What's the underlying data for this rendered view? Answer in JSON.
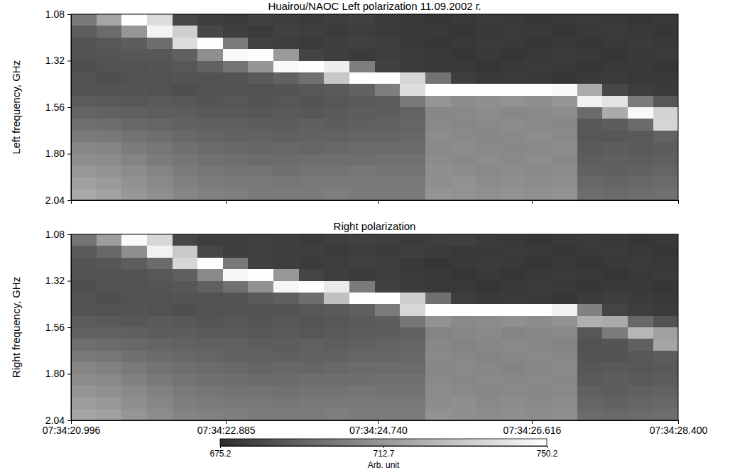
{
  "chart_data": [
    {
      "type": "heatmap",
      "title": "Huairou/NAOC Left polarization 11.09.2002 г.",
      "y_label": "Left frequency, GHz",
      "xlim": [
        20.996,
        28.4
      ],
      "xticks": [
        20.996,
        22.885,
        24.74,
        26.616,
        28.4
      ],
      "ylim": [
        1.08,
        2.04
      ],
      "yticks": [
        1.08,
        1.32,
        1.56,
        {
          "value": 1.8,
          "label": "1.80"
        },
        2.04
      ],
      "tick_labels": "y",
      "x_edges": [
        20.996,
        21.305,
        21.613,
        21.922,
        22.23,
        22.539,
        22.848,
        23.156,
        23.465,
        23.773,
        24.082,
        24.39,
        24.699,
        25.008,
        25.316,
        25.625,
        25.933,
        26.242,
        26.55,
        26.859,
        27.168,
        27.476,
        27.785,
        28.093,
        28.4
      ],
      "y_edges": [
        1.08,
        1.14,
        1.2,
        1.26,
        1.32,
        1.38,
        1.44,
        1.5,
        1.56,
        1.62,
        1.68,
        1.74,
        1.8,
        1.86,
        1.92,
        1.98,
        2.04
      ],
      "cells": [
        [
          702,
          718,
          750,
          738,
          684,
          681,
          680,
          682,
          681,
          680,
          681,
          682,
          680,
          679,
          678,
          679,
          680,
          679,
          678,
          679,
          680,
          679,
          678,
          679
        ],
        [
          692,
          697,
          712,
          746,
          733,
          684,
          681,
          680,
          682,
          681,
          680,
          681,
          680,
          679,
          679,
          678,
          679,
          680,
          679,
          678,
          679,
          680,
          679,
          678
        ],
        [
          689,
          690,
          692,
          698,
          738,
          750,
          703,
          682,
          681,
          680,
          681,
          682,
          681,
          679,
          678,
          679,
          680,
          679,
          678,
          679,
          678,
          679,
          680,
          679
        ],
        [
          688,
          689,
          690,
          690,
          693,
          710,
          748,
          750,
          714,
          683,
          681,
          680,
          681,
          680,
          679,
          678,
          679,
          678,
          679,
          680,
          679,
          678,
          679,
          680
        ],
        [
          687,
          688,
          688,
          689,
          690,
          694,
          700,
          712,
          748,
          750,
          744,
          704,
          682,
          680,
          679,
          679,
          678,
          679,
          680,
          679,
          678,
          679,
          679,
          678
        ],
        [
          688,
          687,
          688,
          688,
          689,
          688,
          689,
          691,
          694,
          699,
          730,
          750,
          750,
          735,
          700,
          681,
          679,
          680,
          679,
          678,
          679,
          680,
          679,
          679
        ],
        [
          689,
          688,
          689,
          688,
          687,
          688,
          689,
          688,
          689,
          690,
          691,
          694,
          704,
          738,
          750,
          750,
          750,
          750,
          750,
          748,
          720,
          684,
          681,
          680
        ],
        [
          692,
          691,
          690,
          691,
          690,
          689,
          690,
          689,
          690,
          689,
          690,
          691,
          692,
          702,
          712,
          709,
          710,
          711,
          710,
          712,
          745,
          740,
          703,
          690
        ],
        [
          695,
          694,
          693,
          692,
          692,
          691,
          691,
          690,
          691,
          690,
          691,
          692,
          692,
          694,
          707,
          708,
          709,
          707,
          708,
          709,
          697,
          720,
          748,
          734
        ],
        [
          699,
          698,
          696,
          695,
          694,
          693,
          693,
          692,
          692,
          693,
          692,
          693,
          694,
          695,
          708,
          707,
          708,
          709,
          708,
          707,
          690,
          692,
          697,
          735
        ],
        [
          703,
          702,
          700,
          698,
          696,
          695,
          694,
          694,
          693,
          694,
          694,
          695,
          695,
          696,
          709,
          708,
          707,
          708,
          709,
          708,
          690,
          690,
          691,
          694
        ],
        [
          707,
          706,
          703,
          701,
          699,
          697,
          696,
          695,
          696,
          695,
          696,
          697,
          697,
          697,
          708,
          709,
          708,
          707,
          708,
          709,
          691,
          692,
          691,
          692
        ],
        [
          710,
          709,
          706,
          703,
          701,
          699,
          698,
          697,
          697,
          698,
          698,
          698,
          699,
          699,
          709,
          708,
          709,
          708,
          709,
          708,
          692,
          693,
          692,
          693
        ],
        [
          713,
          711,
          709,
          706,
          703,
          701,
          700,
          700,
          699,
          700,
          700,
          701,
          700,
          700,
          710,
          709,
          708,
          709,
          708,
          709,
          694,
          693,
          694,
          695
        ],
        [
          716,
          714,
          711,
          708,
          705,
          703,
          702,
          702,
          701,
          702,
          702,
          702,
          702,
          702,
          710,
          711,
          709,
          710,
          709,
          710,
          696,
          695,
          696,
          697
        ],
        [
          719,
          717,
          713,
          710,
          707,
          705,
          704,
          703,
          703,
          703,
          704,
          703,
          703,
          703,
          712,
          711,
          710,
          711,
          710,
          711,
          698,
          697,
          698,
          699
        ]
      ]
    },
    {
      "type": "heatmap",
      "title": "Right polarization",
      "y_label": "Right frequency, GHz",
      "xlim": [
        20.996,
        28.4
      ],
      "xticks": [
        {
          "value": 20.996,
          "label": "07:34:20.996"
        },
        {
          "value": 22.885,
          "label": "07:34:22.885"
        },
        {
          "value": 24.74,
          "label": "07:34:24.740"
        },
        {
          "value": 26.616,
          "label": "07:34:26.616"
        },
        {
          "value": 28.4,
          "label": "07:34:28.400"
        }
      ],
      "ylim": [
        1.08,
        2.04
      ],
      "yticks": [
        1.08,
        1.32,
        1.56,
        {
          "value": 1.8,
          "label": "1.80"
        },
        2.04
      ],
      "x_edges": [
        20.996,
        21.305,
        21.613,
        21.922,
        22.23,
        22.539,
        22.848,
        23.156,
        23.465,
        23.773,
        24.082,
        24.39,
        24.699,
        25.008,
        25.316,
        25.625,
        25.933,
        26.242,
        26.55,
        26.859,
        27.168,
        27.476,
        27.785,
        28.093,
        28.4
      ],
      "y_edges": [
        1.08,
        1.14,
        1.2,
        1.26,
        1.32,
        1.38,
        1.44,
        1.5,
        1.56,
        1.62,
        1.68,
        1.74,
        1.8,
        1.86,
        1.92,
        1.98,
        2.04
      ],
      "cells": [
        [
          700,
          715,
          748,
          736,
          684,
          681,
          681,
          682,
          681,
          680,
          681,
          682,
          681,
          680,
          681,
          682,
          680,
          679,
          678,
          679,
          680,
          679,
          678,
          679
        ],
        [
          691,
          696,
          710,
          745,
          731,
          684,
          681,
          682,
          681,
          681,
          680,
          681,
          680,
          681,
          680,
          679,
          679,
          680,
          679,
          678,
          679,
          680,
          679,
          678
        ],
        [
          689,
          690,
          692,
          697,
          736,
          750,
          702,
          682,
          681,
          680,
          681,
          682,
          681,
          679,
          678,
          679,
          680,
          679,
          678,
          679,
          678,
          679,
          680,
          679
        ],
        [
          688,
          689,
          689,
          690,
          693,
          708,
          747,
          750,
          713,
          683,
          681,
          680,
          681,
          680,
          679,
          678,
          679,
          678,
          679,
          680,
          679,
          678,
          679,
          680
        ],
        [
          687,
          688,
          688,
          689,
          690,
          693,
          699,
          711,
          747,
          750,
          743,
          703,
          682,
          680,
          679,
          679,
          678,
          679,
          680,
          679,
          678,
          679,
          679,
          678
        ],
        [
          688,
          687,
          688,
          688,
          689,
          688,
          689,
          691,
          693,
          698,
          728,
          750,
          750,
          733,
          699,
          681,
          679,
          680,
          679,
          678,
          680,
          681,
          680,
          679
        ],
        [
          689,
          688,
          689,
          688,
          687,
          688,
          689,
          688,
          689,
          690,
          691,
          693,
          703,
          736,
          750,
          750,
          750,
          750,
          750,
          745,
          705,
          683,
          681,
          680
        ],
        [
          692,
          691,
          690,
          691,
          690,
          689,
          690,
          689,
          690,
          689,
          690,
          691,
          692,
          701,
          711,
          708,
          709,
          710,
          709,
          711,
          722,
          720,
          696,
          688
        ],
        [
          694,
          694,
          693,
          692,
          692,
          691,
          691,
          690,
          691,
          690,
          691,
          692,
          692,
          694,
          706,
          707,
          708,
          706,
          707,
          708,
          690,
          703,
          724,
          716
        ],
        [
          698,
          697,
          696,
          695,
          694,
          693,
          693,
          692,
          692,
          693,
          692,
          693,
          694,
          695,
          707,
          706,
          707,
          708,
          707,
          706,
          688,
          689,
          693,
          718
        ],
        [
          702,
          701,
          699,
          697,
          696,
          695,
          694,
          694,
          693,
          694,
          694,
          695,
          695,
          696,
          708,
          707,
          706,
          707,
          708,
          707,
          689,
          689,
          690,
          692
        ],
        [
          706,
          705,
          702,
          700,
          698,
          697,
          696,
          695,
          696,
          695,
          696,
          697,
          697,
          697,
          707,
          708,
          707,
          706,
          707,
          708,
          690,
          691,
          690,
          691
        ],
        [
          709,
          708,
          705,
          702,
          700,
          699,
          698,
          697,
          697,
          698,
          698,
          698,
          699,
          699,
          708,
          707,
          708,
          707,
          708,
          707,
          691,
          692,
          691,
          692
        ],
        [
          712,
          710,
          708,
          705,
          702,
          701,
          700,
          700,
          699,
          700,
          700,
          701,
          700,
          700,
          709,
          708,
          707,
          708,
          707,
          708,
          693,
          692,
          693,
          694
        ],
        [
          715,
          713,
          710,
          707,
          704,
          703,
          702,
          702,
          701,
          702,
          702,
          702,
          702,
          702,
          709,
          710,
          708,
          709,
          708,
          709,
          695,
          694,
          695,
          696
        ],
        [
          718,
          716,
          712,
          709,
          706,
          705,
          704,
          703,
          703,
          703,
          704,
          703,
          703,
          703,
          711,
          710,
          709,
          710,
          709,
          710,
          697,
          696,
          697,
          698
        ]
      ],
      "colorbar_range": [
        675.2,
        750.2
      ],
      "colorbar_ticks": [
        675.2,
        712.7,
        750.2
      ],
      "colorbar_label": "Arb. unit"
    }
  ]
}
